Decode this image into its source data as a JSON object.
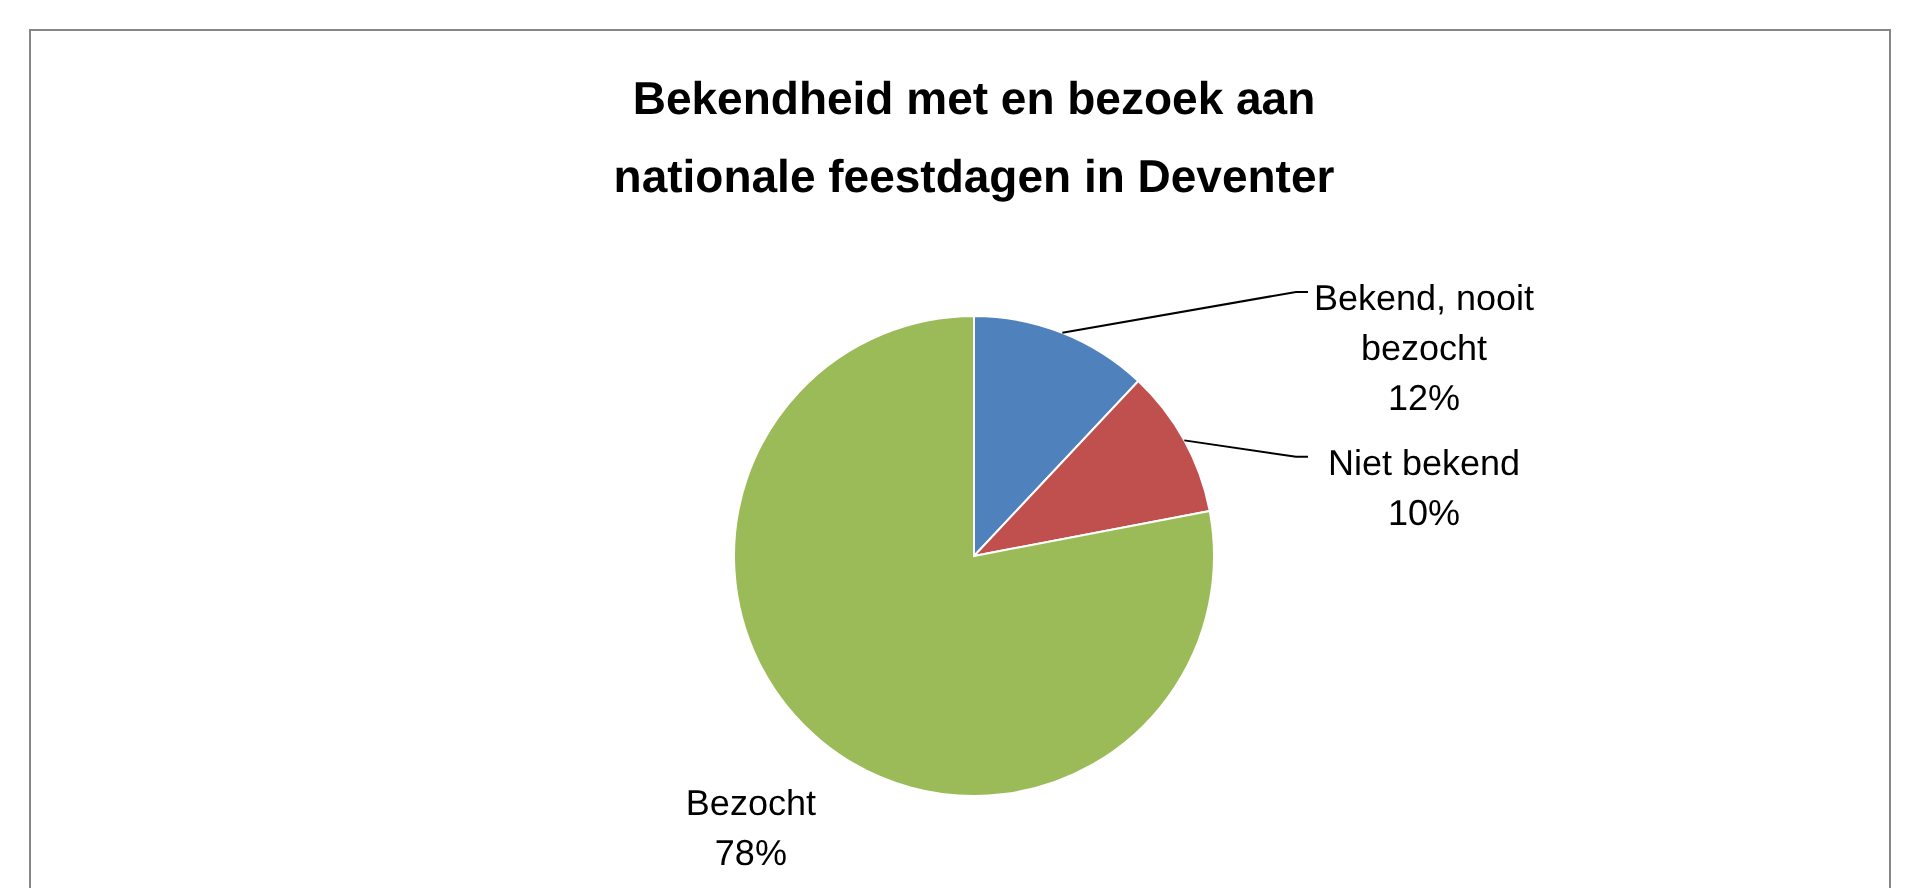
{
  "chart_data": {
    "type": "pie",
    "title": "Bekendheid met en bezoek aan\nnationale feestdagen in Deventer",
    "categories": [
      "Bekend, nooit bezocht",
      "Niet bekend",
      "Bezocht"
    ],
    "values": [
      12,
      10,
      78
    ],
    "colors": [
      "#4f81bd",
      "#c0504d",
      "#9bbb59"
    ],
    "value_labels": [
      "12%",
      "10%",
      "78%"
    ]
  }
}
